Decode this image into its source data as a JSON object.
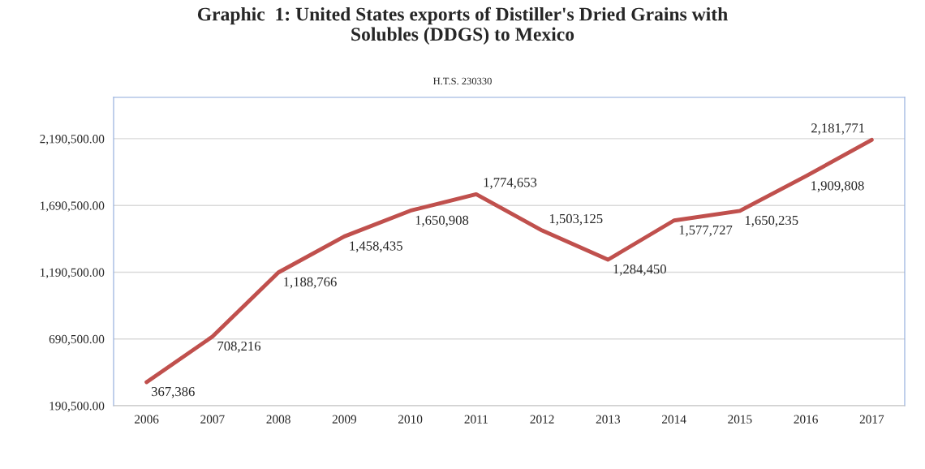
{
  "chart_data": {
    "type": "line",
    "title": "Graphic  1: United States exports of Distiller's Dried Grains with\nSolubles (DDGS) to Mexico",
    "subtitle": "H.T.S. 230330",
    "categories": [
      "2006",
      "2007",
      "2008",
      "2009",
      "2010",
      "2011",
      "2012",
      "2013",
      "2014",
      "2015",
      "2016",
      "2017"
    ],
    "series": [
      {
        "color": "#c0504d",
        "values": [
          367386,
          708216,
          1188766,
          1458435,
          1650908,
          1774653,
          1503125,
          1284450,
          1577727,
          1650235,
          1909808,
          2181771
        ],
        "value_labels": [
          "367,386",
          "708,216",
          "1,188,766",
          "1,458,435",
          "1,650,908",
          "1,774,653",
          "1,503,125",
          "1,284,450",
          "1,577,727",
          "1,650,235",
          "1,909,808",
          "2,181,771"
        ]
      }
    ],
    "ylim": [
      190500,
      2500000
    ],
    "yticks": [
      {
        "value": 190500,
        "label": "190,500.00"
      },
      {
        "value": 690500,
        "label": "690,500.00"
      },
      {
        "value": 1190500,
        "label": "1,190,500.00"
      },
      {
        "value": 1690500,
        "label": "1,690,500.00"
      },
      {
        "value": 2190500,
        "label": "2,190,500.00"
      }
    ],
    "grid": "y",
    "legend": false,
    "marker": "none",
    "line_style": "solid"
  }
}
